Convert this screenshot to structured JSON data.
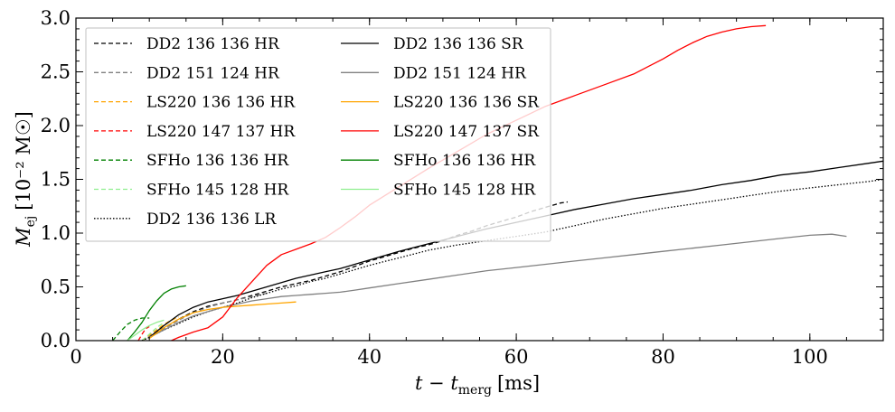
{
  "chart_data": {
    "type": "line",
    "xlabel_main": "t − t",
    "xlabel_sub": "merg",
    "xlabel_unit": "[ms]",
    "ylabel_main": "M",
    "ylabel_sub": "ej",
    "ylabel_unit": "[10⁻² M☉]",
    "xlim": [
      0,
      110
    ],
    "ylim": [
      0,
      3.0
    ],
    "xticks": [
      0,
      20,
      40,
      60,
      80,
      100
    ],
    "yticks": [
      0.0,
      0.5,
      1.0,
      1.5,
      2.0,
      2.5,
      3.0
    ],
    "xtick_labels": [
      "0",
      "20",
      "40",
      "60",
      "80",
      "100"
    ],
    "ytick_labels": [
      "0.0",
      "0.5",
      "1.0",
      "1.5",
      "2.0",
      "2.5",
      "3.0"
    ],
    "legend_placement": "top-left",
    "grid": false,
    "series": [
      {
        "name": "DD2 136 136 HR",
        "color": "#000000",
        "dash": "dashed",
        "x": [
          9,
          10,
          12,
          14,
          16,
          18,
          20,
          22,
          24,
          26,
          28,
          30,
          32,
          34,
          36,
          38,
          40,
          42,
          44,
          46,
          48,
          50,
          52,
          54,
          56,
          58,
          60,
          62,
          64,
          66,
          67
        ],
        "y": [
          0,
          0.04,
          0.12,
          0.2,
          0.27,
          0.32,
          0.35,
          0.38,
          0.42,
          0.46,
          0.5,
          0.53,
          0.56,
          0.6,
          0.64,
          0.69,
          0.74,
          0.78,
          0.82,
          0.86,
          0.89,
          0.93,
          0.98,
          1.02,
          1.07,
          1.11,
          1.15,
          1.2,
          1.24,
          1.28,
          1.29
        ]
      },
      {
        "name": "DD2 151 124 HR",
        "color": "#808080",
        "dash": "dashed",
        "x": [
          9,
          10,
          12,
          14,
          16,
          18,
          20,
          22,
          24,
          26
        ],
        "y": [
          0,
          0.04,
          0.11,
          0.19,
          0.26,
          0.31,
          0.35,
          0.38,
          0.41,
          0.44
        ]
      },
      {
        "name": "LS220 136 136 HR",
        "color": "#ffa500",
        "dash": "dashed",
        "x": [
          9,
          10,
          11,
          12,
          13,
          14
        ],
        "y": [
          0,
          0.05,
          0.1,
          0.15,
          0.19,
          0.22
        ]
      },
      {
        "name": "LS220 147 137 HR",
        "color": "#ff0000",
        "dash": "dashed",
        "x": [
          8.5,
          9,
          9.5,
          10
        ],
        "y": [
          0,
          0.06,
          0.11,
          0.13
        ]
      },
      {
        "name": "SFHo 136 136 HR",
        "color": "#008000",
        "dash": "dashed",
        "x": [
          5,
          6,
          7,
          8,
          9,
          10
        ],
        "y": [
          0,
          0.08,
          0.15,
          0.19,
          0.21,
          0.21
        ]
      },
      {
        "name": "SFHo 145 128 HR",
        "color": "#90ee90",
        "dash": "dashed",
        "x": [
          9,
          10,
          11,
          12
        ],
        "y": [
          0,
          0.06,
          0.12,
          0.17
        ]
      },
      {
        "name": "DD2 136 136 LR",
        "color": "#000000",
        "dash": "dotted",
        "x": [
          9,
          10,
          12,
          14,
          16,
          18,
          20,
          22,
          24,
          26,
          28,
          30,
          32,
          34,
          36,
          38,
          40,
          44,
          48,
          52,
          56,
          60,
          64,
          68,
          72,
          76,
          80,
          84,
          88,
          92,
          96,
          100,
          104,
          108,
          110
        ],
        "y": [
          0,
          0.03,
          0.1,
          0.16,
          0.22,
          0.27,
          0.31,
          0.35,
          0.4,
          0.44,
          0.48,
          0.51,
          0.55,
          0.58,
          0.62,
          0.66,
          0.7,
          0.77,
          0.84,
          0.89,
          0.93,
          0.97,
          1.01,
          1.07,
          1.13,
          1.18,
          1.23,
          1.27,
          1.31,
          1.35,
          1.39,
          1.42,
          1.45,
          1.48,
          1.5
        ]
      },
      {
        "name": "DD2 136 136 SR",
        "color": "#000000",
        "dash": "solid",
        "x": [
          10,
          12,
          14,
          16,
          18,
          20,
          22,
          24,
          26,
          28,
          30,
          32,
          34,
          36,
          38,
          40,
          44,
          48,
          52,
          56,
          60,
          64,
          68,
          72,
          76,
          80,
          84,
          88,
          92,
          96,
          100,
          104,
          108,
          110
        ],
        "y": [
          0.03,
          0.14,
          0.24,
          0.31,
          0.36,
          0.39,
          0.42,
          0.46,
          0.5,
          0.54,
          0.58,
          0.61,
          0.64,
          0.67,
          0.71,
          0.75,
          0.83,
          0.9,
          0.97,
          1.04,
          1.1,
          1.16,
          1.22,
          1.27,
          1.32,
          1.36,
          1.4,
          1.45,
          1.49,
          1.54,
          1.57,
          1.61,
          1.65,
          1.67
        ]
      },
      {
        "name": "DD2 151 124 HR",
        "color": "#808080",
        "dash": "solid",
        "x": [
          10,
          12,
          14,
          16,
          18,
          20,
          22,
          24,
          26,
          28,
          30,
          32,
          34,
          36,
          38,
          40,
          44,
          48,
          52,
          56,
          60,
          64,
          68,
          72,
          76,
          80,
          84,
          88,
          92,
          96,
          100,
          103,
          105
        ],
        "y": [
          0.03,
          0.1,
          0.17,
          0.23,
          0.27,
          0.31,
          0.34,
          0.37,
          0.39,
          0.41,
          0.42,
          0.43,
          0.44,
          0.45,
          0.47,
          0.49,
          0.53,
          0.57,
          0.61,
          0.65,
          0.68,
          0.71,
          0.74,
          0.77,
          0.8,
          0.83,
          0.86,
          0.89,
          0.92,
          0.95,
          0.98,
          0.99,
          0.97
        ]
      },
      {
        "name": "LS220 136 136 SR",
        "color": "#ffa500",
        "dash": "solid",
        "x": [
          10,
          11,
          12,
          14,
          16,
          18,
          20,
          22,
          24,
          26,
          28,
          30
        ],
        "y": [
          0.02,
          0.07,
          0.12,
          0.2,
          0.26,
          0.29,
          0.31,
          0.32,
          0.33,
          0.34,
          0.35,
          0.36
        ]
      },
      {
        "name": "LS220 147 137 SR",
        "color": "#ff0000",
        "dash": "solid",
        "x": [
          13,
          14,
          16,
          18,
          20,
          22,
          24,
          26,
          28,
          30,
          32,
          34,
          36,
          38,
          40,
          44,
          48,
          52,
          56,
          60,
          64,
          68,
          72,
          76,
          78,
          80,
          82,
          84,
          86,
          88,
          90,
          92,
          94
        ],
        "y": [
          0,
          0.03,
          0.08,
          0.12,
          0.22,
          0.4,
          0.55,
          0.7,
          0.8,
          0.85,
          0.9,
          0.96,
          1.05,
          1.15,
          1.26,
          1.43,
          1.6,
          1.76,
          1.92,
          2.05,
          2.18,
          2.28,
          2.38,
          2.48,
          2.55,
          2.62,
          2.7,
          2.77,
          2.83,
          2.87,
          2.9,
          2.92,
          2.93
        ]
      },
      {
        "name": "SFHo 136 136 HR",
        "color": "#008000",
        "dash": "solid",
        "x": [
          7,
          8,
          9,
          10,
          11,
          12,
          13,
          14,
          15
        ],
        "y": [
          0,
          0.08,
          0.17,
          0.28,
          0.37,
          0.44,
          0.48,
          0.5,
          0.51
        ]
      },
      {
        "name": "SFHo 145 128 HR",
        "color": "#90ee90",
        "dash": "solid",
        "x": [
          7,
          8,
          9,
          10,
          11,
          12
        ],
        "y": [
          0,
          0.05,
          0.1,
          0.14,
          0.17,
          0.19
        ]
      }
    ]
  }
}
